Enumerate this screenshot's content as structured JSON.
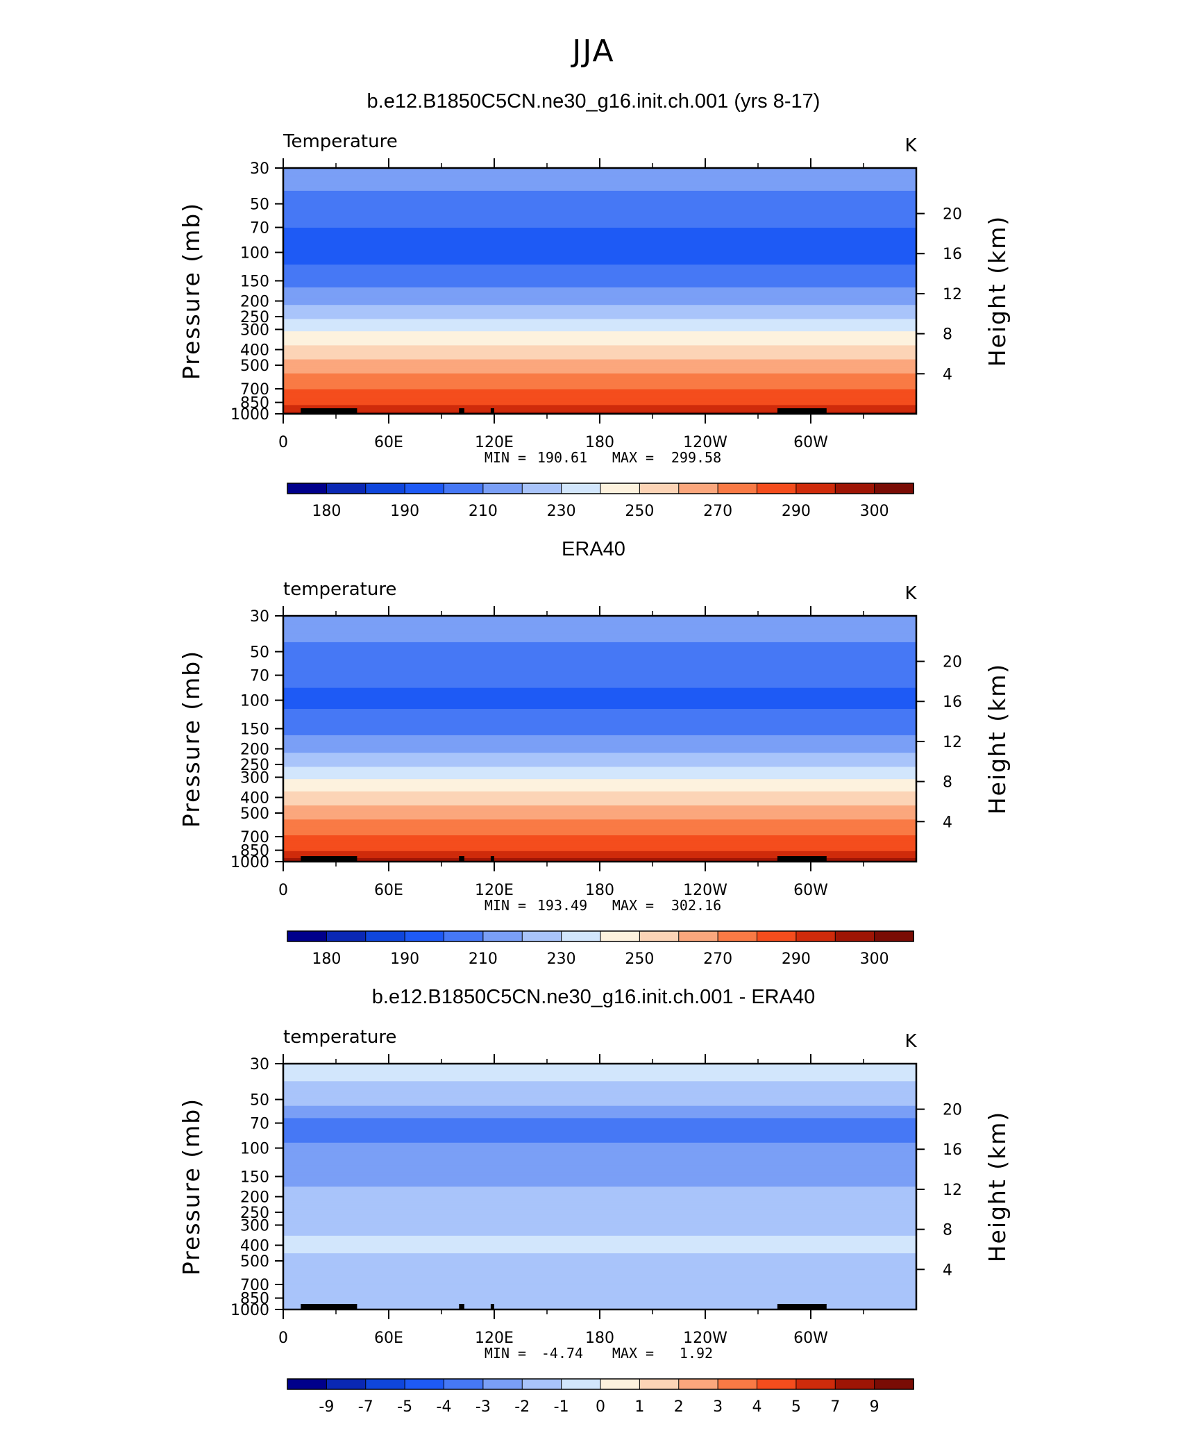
{
  "page": {
    "title": "JJA"
  },
  "colors": {
    "scale": [
      "#00008b",
      "#0a28b4",
      "#0f46dc",
      "#1e5af5",
      "#4678f5",
      "#7a9ff6",
      "#a9c4fa",
      "#d2e6fc",
      "#fdf2de",
      "#fcd4b6",
      "#fba77d",
      "#f97a45",
      "#f44d1d",
      "#cf2b0b",
      "#9e1505",
      "#7a0c05"
    ],
    "land": "#000000"
  },
  "chart_data": [
    {
      "type": "heatmap",
      "title": "b.e12.B1850C5CN.ne30_g16.init.ch.001 (yrs 8-17)",
      "left_label": "Temperature",
      "units": "K",
      "ylabel": "Pressure (mb)",
      "y2label": "Height (km)",
      "yticks": [
        "30",
        "50",
        "70",
        "100",
        "150",
        "200",
        "250",
        "300",
        "400",
        "500",
        "700",
        "850",
        "1000"
      ],
      "y2ticks": [
        "20",
        "16",
        "12",
        "8",
        "4"
      ],
      "xticks": [
        "0",
        "60E",
        "120E",
        "180",
        "120W",
        "60W"
      ],
      "stats": {
        "min_label": "MIN =",
        "min": "190.61",
        "max_label": "MAX =",
        "max": "299.58"
      },
      "colorbar_labels": [
        "180",
        "190",
        "210",
        "230",
        "250",
        "270",
        "290",
        "300"
      ],
      "levels": [
        175,
        180,
        185,
        190,
        200,
        210,
        220,
        230,
        240,
        250,
        260,
        270,
        280,
        290,
        295,
        300
      ],
      "profile": [
        {
          "p": 30,
          "v": 215
        },
        {
          "p": 50,
          "v": 207
        },
        {
          "p": 70,
          "v": 200
        },
        {
          "p": 100,
          "v": 196
        },
        {
          "p": 150,
          "v": 206
        },
        {
          "p": 200,
          "v": 217
        },
        {
          "p": 250,
          "v": 228
        },
        {
          "p": 300,
          "v": 238
        },
        {
          "p": 400,
          "v": 253
        },
        {
          "p": 500,
          "v": 265
        },
        {
          "p": 700,
          "v": 280
        },
        {
          "p": 850,
          "v": 288
        },
        {
          "p": 1000,
          "v": 297
        }
      ]
    },
    {
      "type": "heatmap",
      "title": "ERA40",
      "left_label": "temperature",
      "units": "K",
      "ylabel": "Pressure (mb)",
      "y2label": "Height (km)",
      "yticks": [
        "30",
        "50",
        "70",
        "100",
        "150",
        "200",
        "250",
        "300",
        "400",
        "500",
        "700",
        "850",
        "1000"
      ],
      "y2ticks": [
        "20",
        "16",
        "12",
        "8",
        "4"
      ],
      "xticks": [
        "0",
        "60E",
        "120E",
        "180",
        "120W",
        "60W"
      ],
      "stats": {
        "min_label": "MIN =",
        "min": "193.49",
        "max_label": "MAX =",
        "max": "302.16"
      },
      "colorbar_labels": [
        "180",
        "190",
        "210",
        "230",
        "250",
        "270",
        "290",
        "300"
      ],
      "levels": [
        175,
        180,
        185,
        190,
        200,
        210,
        220,
        230,
        240,
        250,
        260,
        270,
        280,
        290,
        295,
        300
      ],
      "profile": [
        {
          "p": 30,
          "v": 215
        },
        {
          "p": 50,
          "v": 208
        },
        {
          "p": 70,
          "v": 203
        },
        {
          "p": 100,
          "v": 197
        },
        {
          "p": 150,
          "v": 206
        },
        {
          "p": 200,
          "v": 217
        },
        {
          "p": 250,
          "v": 228
        },
        {
          "p": 300,
          "v": 239
        },
        {
          "p": 400,
          "v": 254
        },
        {
          "p": 500,
          "v": 266
        },
        {
          "p": 700,
          "v": 281
        },
        {
          "p": 850,
          "v": 289
        },
        {
          "p": 1000,
          "v": 298
        }
      ]
    },
    {
      "type": "heatmap",
      "title": "b.e12.B1850C5CN.ne30_g16.init.ch.001 - ERA40",
      "left_label": "temperature",
      "units": "K",
      "ylabel": "Pressure (mb)",
      "y2label": "Height (km)",
      "yticks": [
        "30",
        "50",
        "70",
        "100",
        "150",
        "200",
        "250",
        "300",
        "400",
        "500",
        "700",
        "850",
        "1000"
      ],
      "y2ticks": [
        "20",
        "16",
        "12",
        "8",
        "4"
      ],
      "xticks": [
        "0",
        "60E",
        "120E",
        "180",
        "120W",
        "60W"
      ],
      "stats": {
        "min_label": "MIN =",
        "min": "-4.74",
        "max_label": "MAX =",
        "max": "1.92"
      },
      "colorbar_labels": [
        "-9",
        "-7",
        "-5",
        "-4",
        "-3",
        "-2",
        "-1",
        "0",
        "1",
        "2",
        "3",
        "4",
        "5",
        "7",
        "9"
      ],
      "levels": [
        -11,
        -9,
        -7,
        -5,
        -4,
        -3,
        -2,
        -1,
        0,
        1,
        2,
        3,
        4,
        5,
        7,
        9
      ],
      "profile": [
        {
          "p": 30,
          "v": -0.5
        },
        {
          "p": 50,
          "v": -1.5
        },
        {
          "p": 60,
          "v": -2.5
        },
        {
          "p": 70,
          "v": -3.5
        },
        {
          "p": 85,
          "v": -3.5
        },
        {
          "p": 100,
          "v": -2.5
        },
        {
          "p": 150,
          "v": -2.5
        },
        {
          "p": 200,
          "v": -1.5
        },
        {
          "p": 250,
          "v": -1.5
        },
        {
          "p": 300,
          "v": -1.5
        },
        {
          "p": 400,
          "v": -0.5
        },
        {
          "p": 500,
          "v": -1.5
        },
        {
          "p": 700,
          "v": -1.5
        },
        {
          "p": 850,
          "v": -1.5
        },
        {
          "p": 1000,
          "v": -1.5
        }
      ]
    }
  ]
}
